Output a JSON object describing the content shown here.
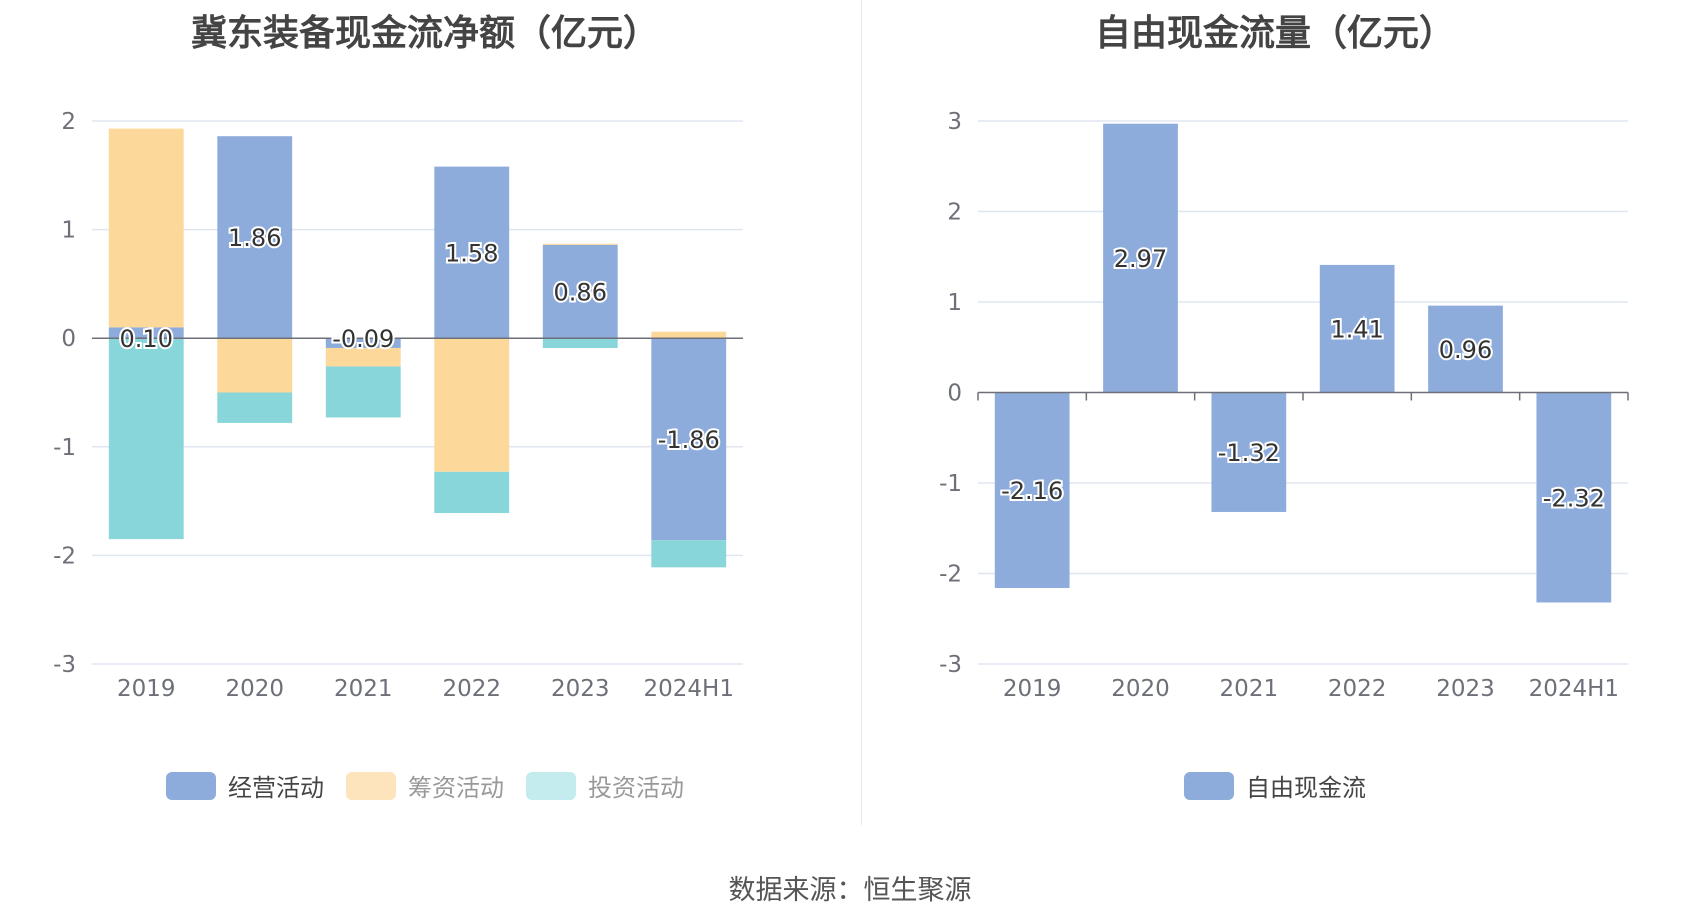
{
  "colors": {
    "operating": "#8eacdb",
    "financing": "#fdd89b",
    "investing": "#88d6d9",
    "investing_legend": "#c4ebed",
    "fcf": "#8eacdb"
  },
  "legend_left": [
    {
      "label": "经营活动",
      "color": "#8eacdb",
      "dim": false
    },
    {
      "label": "筹资活动",
      "color": "#fee4bd",
      "dim": true
    },
    {
      "label": "投资活动",
      "color": "#c4ebed",
      "dim": true
    }
  ],
  "legend_right": [
    {
      "label": "自由现金流",
      "color": "#8eacdb",
      "dim": false
    }
  ],
  "source": "数据来源：恒生聚源",
  "chart_data": [
    {
      "type": "bar",
      "stacked": true,
      "title": "冀东装备现金流净额（亿元）",
      "categories": [
        "2019",
        "2020",
        "2021",
        "2022",
        "2023",
        "2024H1"
      ],
      "ylim": [
        -3,
        2
      ],
      "yticks": [
        2,
        1,
        0,
        -1,
        -2,
        -3
      ],
      "grid": true,
      "legend_position": "bottom",
      "series": [
        {
          "name": "经营活动",
          "values": [
            0.1,
            1.86,
            -0.09,
            1.58,
            0.86,
            -1.86
          ],
          "labels": [
            "0.10",
            "1.86",
            "-0.09",
            "1.58",
            "0.86",
            "-1.86"
          ]
        },
        {
          "name": "筹资活动",
          "values": [
            1.83,
            -0.5,
            -0.17,
            -1.23,
            0.01,
            0.06
          ]
        },
        {
          "name": "投资活动",
          "values": [
            -1.85,
            -0.28,
            -0.47,
            -0.38,
            -0.09,
            -0.25
          ]
        }
      ]
    },
    {
      "type": "bar",
      "title": "自由现金流量（亿元）",
      "categories": [
        "2019",
        "2020",
        "2021",
        "2022",
        "2023",
        "2024H1"
      ],
      "ylim": [
        -3,
        3
      ],
      "yticks": [
        3,
        2,
        1,
        0,
        -1,
        -2,
        -3
      ],
      "grid": true,
      "legend_position": "bottom",
      "series": [
        {
          "name": "自由现金流",
          "values": [
            -2.16,
            2.97,
            -1.32,
            1.41,
            0.96,
            -2.32
          ],
          "labels": [
            "-2.16",
            "2.97",
            "-1.32",
            "1.41",
            "0.96",
            "-2.32"
          ]
        }
      ]
    }
  ]
}
